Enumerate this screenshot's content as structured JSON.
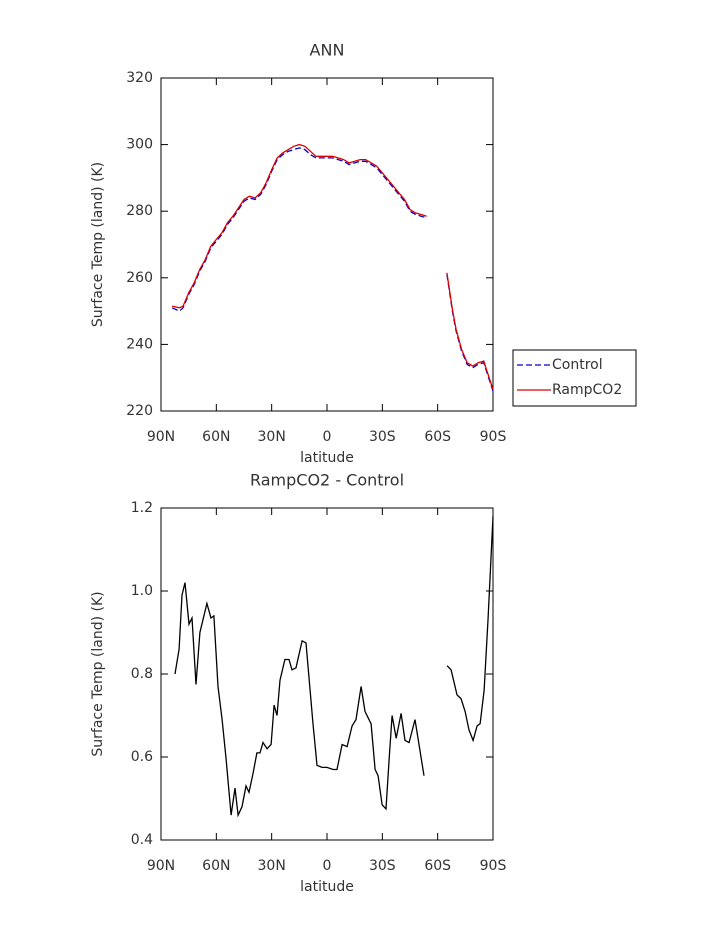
{
  "chart_data": [
    {
      "type": "line",
      "title": "ANN",
      "x_label": "latitude",
      "y_label": "Surface Temp (land) (K)",
      "xlim": [
        90,
        -90
      ],
      "xticks": [
        {
          "value": 90,
          "label": "90N"
        },
        {
          "value": 60,
          "label": "60N"
        },
        {
          "value": 30,
          "label": "30N"
        },
        0,
        {
          "value": -30,
          "label": "30S"
        },
        {
          "value": -60,
          "label": "60S"
        },
        {
          "value": -90,
          "label": "90S"
        }
      ],
      "ylim": [
        220,
        320
      ],
      "yticks": [
        220,
        240,
        260,
        280,
        300,
        320
      ],
      "legend": "right",
      "x": [
        84,
        80,
        78,
        75,
        72,
        69,
        66,
        63,
        60,
        57,
        54,
        51,
        48,
        45,
        42,
        39,
        36,
        33,
        30,
        27,
        24,
        21,
        18,
        15,
        12,
        9,
        6,
        3,
        0,
        -3,
        -6,
        -9,
        -12,
        -15,
        -18,
        -21,
        -24,
        -27,
        -30,
        -33,
        -36,
        -39,
        -42,
        -45,
        -48,
        -51,
        -54,
        -60,
        -65,
        -68,
        -70,
        -73,
        -76,
        -79,
        -82,
        -85,
        -87,
        -90
      ],
      "series": [
        {
          "name": "Control",
          "color": "#0000cc",
          "dashed": true,
          "values": [
            251,
            250,
            251,
            255,
            258,
            262,
            265,
            269,
            271,
            273,
            276,
            278,
            280.5,
            283,
            284,
            283.5,
            285,
            288,
            292,
            295.5,
            297,
            298,
            298.5,
            299,
            298.5,
            297,
            296,
            296,
            296,
            296,
            295.5,
            295,
            294,
            294.5,
            295,
            295,
            294,
            293,
            291,
            289,
            287,
            285,
            283,
            280,
            279,
            278.5,
            278,
            null,
            261,
            250,
            244,
            238,
            234,
            233,
            234,
            234.5,
            231,
            226
          ]
        },
        {
          "name": "RampCO2",
          "color": "#dd0000",
          "dashed": false,
          "values": [
            251.5,
            251,
            251.5,
            255.5,
            258.5,
            262.5,
            265.5,
            269.5,
            271.5,
            273.5,
            276.5,
            278.5,
            281,
            283.5,
            284.5,
            284,
            285.5,
            288.5,
            292.5,
            296,
            297.5,
            298.5,
            299.5,
            300,
            299.5,
            298,
            296.5,
            296.5,
            296.5,
            296.5,
            296,
            295.5,
            294.5,
            295,
            295.5,
            295.5,
            294.5,
            293.5,
            291.5,
            289.5,
            287.5,
            285.5,
            283.5,
            280.5,
            279.5,
            279,
            278.5,
            null,
            261.5,
            250.5,
            244.5,
            238.5,
            234.5,
            233.5,
            234.5,
            235,
            231.5,
            226.5
          ]
        }
      ]
    },
    {
      "type": "line",
      "title": "RampCO2 - Control",
      "x_label": "latitude",
      "y_label": "Surface Temp (land) (K)",
      "xlim": [
        90,
        -90
      ],
      "xticks": [
        {
          "value": 90,
          "label": "90N"
        },
        {
          "value": 60,
          "label": "60N"
        },
        {
          "value": 30,
          "label": "30N"
        },
        0,
        {
          "value": -30,
          "label": "30S"
        },
        {
          "value": -60,
          "label": "60S"
        },
        {
          "value": -90,
          "label": "90S"
        }
      ],
      "ylim": [
        0.4,
        1.2
      ],
      "yticks": [
        0.4,
        0.6,
        0.8,
        {
          "value": 1,
          "label": "1.0"
        },
        1.2
      ],
      "color": "#000000",
      "x": [
        82.4,
        80.2,
        78.6,
        77.0,
        74.8,
        73.2,
        71.0,
        68.9,
        65.1,
        62.9,
        61.3,
        59.1,
        56.9,
        54.7,
        52.0,
        49.9,
        48.2,
        46.1,
        43.9,
        42.3,
        40.1,
        38.0,
        36.3,
        34.7,
        32.5,
        30.3,
        28.7,
        27.1,
        25.5,
        22.8,
        20.6,
        19.0,
        16.8,
        13.5,
        11.4,
        7.6,
        5.4,
        2.7,
        0,
        -3.3,
        -5.4,
        -8.2,
        -10.9,
        -13.6,
        -15.7,
        -18.5,
        -20.6,
        -23.9,
        -26.1,
        -27.7,
        -29.9,
        -32.0,
        -33.6,
        -35.3,
        -37.5,
        -40.2,
        -42.3,
        -44.5,
        -47.7,
        -49.9,
        -52.6,
        -60,
        -65.1,
        -67.3,
        -70.5,
        -72.7,
        -74.9,
        -77.0,
        -79.2,
        -81.4,
        -83.0,
        -85.2,
        -87.3,
        -90
      ],
      "values": [
        0.8,
        0.86,
        0.99,
        1.02,
        0.92,
        0.935,
        0.775,
        0.9,
        0.97,
        0.935,
        0.94,
        0.77,
        0.69,
        0.595,
        0.46,
        0.525,
        0.46,
        0.48,
        0.53,
        0.515,
        0.56,
        0.61,
        0.61,
        0.635,
        0.62,
        0.63,
        0.725,
        0.7,
        0.785,
        0.835,
        0.835,
        0.81,
        0.815,
        0.88,
        0.875,
        0.68,
        0.58,
        0.575,
        0.575,
        0.57,
        0.57,
        0.63,
        0.625,
        0.675,
        0.69,
        0.77,
        0.71,
        0.68,
        0.57,
        0.555,
        0.485,
        0.475,
        0.59,
        0.7,
        0.645,
        0.705,
        0.64,
        0.635,
        0.69,
        0.63,
        0.555,
        null,
        0.82,
        0.81,
        0.75,
        0.74,
        0.71,
        0.665,
        0.64,
        0.675,
        0.68,
        0.76,
        0.93,
        1.18
      ]
    }
  ]
}
